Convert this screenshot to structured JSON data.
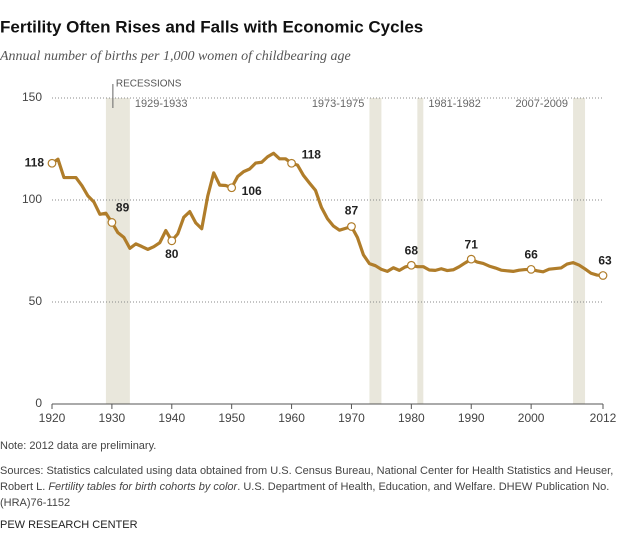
{
  "chart_data": {
    "type": "line",
    "title": "Fertility Often Rises and Falls with Economic Cycles",
    "subtitle": "Annual number of births per 1,000 women of childbearing age",
    "x": [
      1920,
      1921,
      1922,
      1923,
      1924,
      1925,
      1926,
      1927,
      1928,
      1929,
      1930,
      1931,
      1932,
      1933,
      1934,
      1935,
      1936,
      1937,
      1938,
      1939,
      1940,
      1941,
      1942,
      1943,
      1944,
      1945,
      1946,
      1947,
      1948,
      1949,
      1950,
      1951,
      1952,
      1953,
      1954,
      1955,
      1956,
      1957,
      1958,
      1959,
      1960,
      1961,
      1962,
      1963,
      1964,
      1965,
      1966,
      1967,
      1968,
      1969,
      1970,
      1971,
      1972,
      1973,
      1974,
      1975,
      1976,
      1977,
      1978,
      1979,
      1980,
      1981,
      1982,
      1983,
      1984,
      1985,
      1986,
      1987,
      1988,
      1989,
      1990,
      1991,
      1992,
      1993,
      1994,
      1995,
      1996,
      1997,
      1998,
      1999,
      2000,
      2001,
      2002,
      2003,
      2004,
      2005,
      2006,
      2007,
      2008,
      2009,
      2010,
      2011,
      2012
    ],
    "values": [
      118,
      120,
      111,
      111,
      111,
      107,
      102,
      99,
      93,
      93.5,
      89,
      84,
      81.7,
      76.3,
      78.5,
      77.2,
      75.8,
      77.1,
      79.1,
      85,
      80,
      83.4,
      91.5,
      94.3,
      88.8,
      85.9,
      101.9,
      113.3,
      107.3,
      107.1,
      106,
      111.5,
      113.9,
      115.2,
      118.1,
      118.5,
      121.2,
      122.9,
      120.2,
      120.2,
      118,
      117.1,
      112,
      108.3,
      104.7,
      96.3,
      90.8,
      87.2,
      85.2,
      86.1,
      87,
      81.6,
      73.1,
      68.8,
      67.8,
      66,
      65,
      66.8,
      65.5,
      67.2,
      68,
      67.3,
      67.3,
      65.7,
      65.5,
      66.3,
      65.4,
      65.8,
      67.3,
      69.2,
      71,
      69.6,
      68.9,
      67.6,
      66.7,
      65.6,
      65.3,
      65,
      65.6,
      65.9,
      66,
      65.3,
      64.8,
      66.1,
      66.4,
      66.7,
      68.6,
      69.3,
      68.1,
      66.2,
      64.1,
      63.2,
      63
    ],
    "value_labels": [
      "118",
      null,
      null,
      null,
      null,
      null,
      null,
      null,
      null,
      null,
      "89",
      null,
      null,
      null,
      null,
      null,
      null,
      null,
      null,
      null,
      "80",
      null,
      null,
      null,
      null,
      null,
      null,
      null,
      null,
      null,
      "106",
      null,
      null,
      null,
      null,
      null,
      null,
      null,
      null,
      null,
      "118",
      null,
      null,
      null,
      null,
      null,
      null,
      null,
      null,
      null,
      "87",
      null,
      null,
      null,
      null,
      null,
      null,
      null,
      null,
      null,
      "68",
      null,
      null,
      null,
      null,
      null,
      null,
      null,
      null,
      null,
      "71",
      null,
      null,
      null,
      null,
      null,
      null,
      null,
      null,
      null,
      "66",
      null,
      null,
      null,
      null,
      null,
      null,
      null,
      null,
      null,
      null,
      null,
      "63"
    ],
    "color": "#b07d2a",
    "xlim": [
      1920,
      2012
    ],
    "xticks": [
      1920,
      1930,
      1940,
      1950,
      1960,
      1970,
      1980,
      1990,
      2000,
      2012
    ],
    "ylim": [
      0,
      150
    ],
    "yticks": [
      0,
      50,
      100,
      150
    ],
    "grid": true,
    "recessions_label": "RECESSIONS",
    "recessions": [
      {
        "label": "1929-1933",
        "start": 1929,
        "end": 1933
      },
      {
        "label": "1973-1975",
        "start": 1973,
        "end": 1975
      },
      {
        "label": "1981-1982",
        "start": 1981,
        "end": 1982
      },
      {
        "label": "2007-2009",
        "start": 2007,
        "end": 2009
      }
    ],
    "note": "Note: 2012 data are preliminary.",
    "source": [
      "Sources: Statistics calculated using data obtained from U.S. Census Bureau, National Center for Health Statistics and Heuser, Robert L. ",
      "Fertility tables for birth cohorts by color",
      ". U.S. Department of Health, Education, and Welfare. DHEW Publication No. (HRA)76-1152"
    ],
    "footer": "PEW RESEARCH CENTER"
  }
}
